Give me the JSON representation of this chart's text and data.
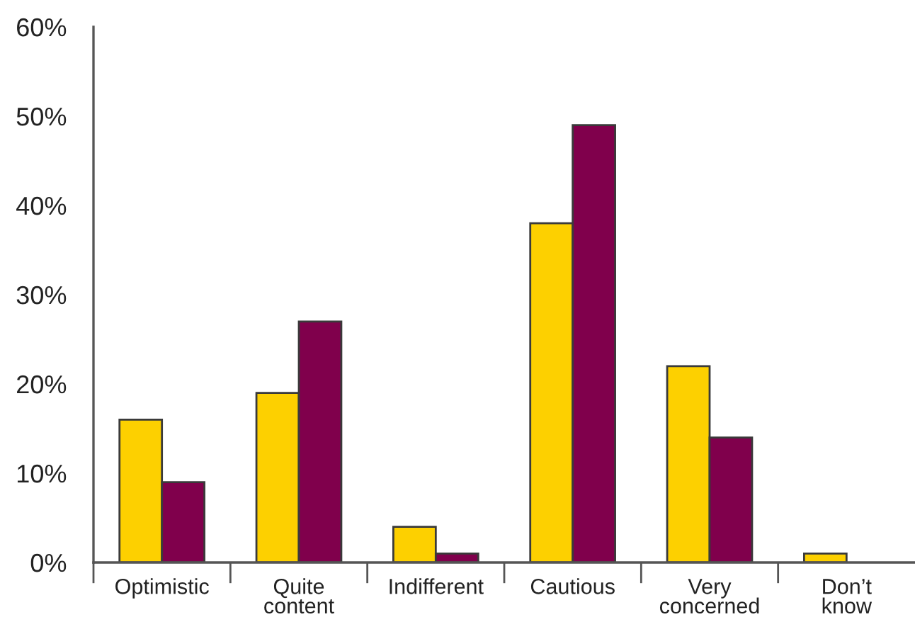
{
  "chart_data": {
    "type": "bar",
    "categories": [
      "Optimistic",
      "Quite\ncontent",
      "Indifferent",
      "Cautious",
      "Very\nconcerned",
      "Don’t\nknow"
    ],
    "series": [
      {
        "color": "#fdd000",
        "values": [
          16,
          19,
          4,
          38,
          22,
          1
        ]
      },
      {
        "color": "#80004c",
        "values": [
          9,
          27,
          1,
          49,
          14,
          null
        ]
      }
    ],
    "ylim": [
      0,
      60
    ],
    "yticks": [
      {
        "value": 0,
        "label": "0%"
      },
      {
        "value": 10,
        "label": "10%"
      },
      {
        "value": 20,
        "label": "20%"
      },
      {
        "value": 30,
        "label": "30%"
      },
      {
        "value": 40,
        "label": "40%"
      },
      {
        "value": 50,
        "label": "50%"
      },
      {
        "value": 60,
        "label": "60%"
      }
    ]
  }
}
